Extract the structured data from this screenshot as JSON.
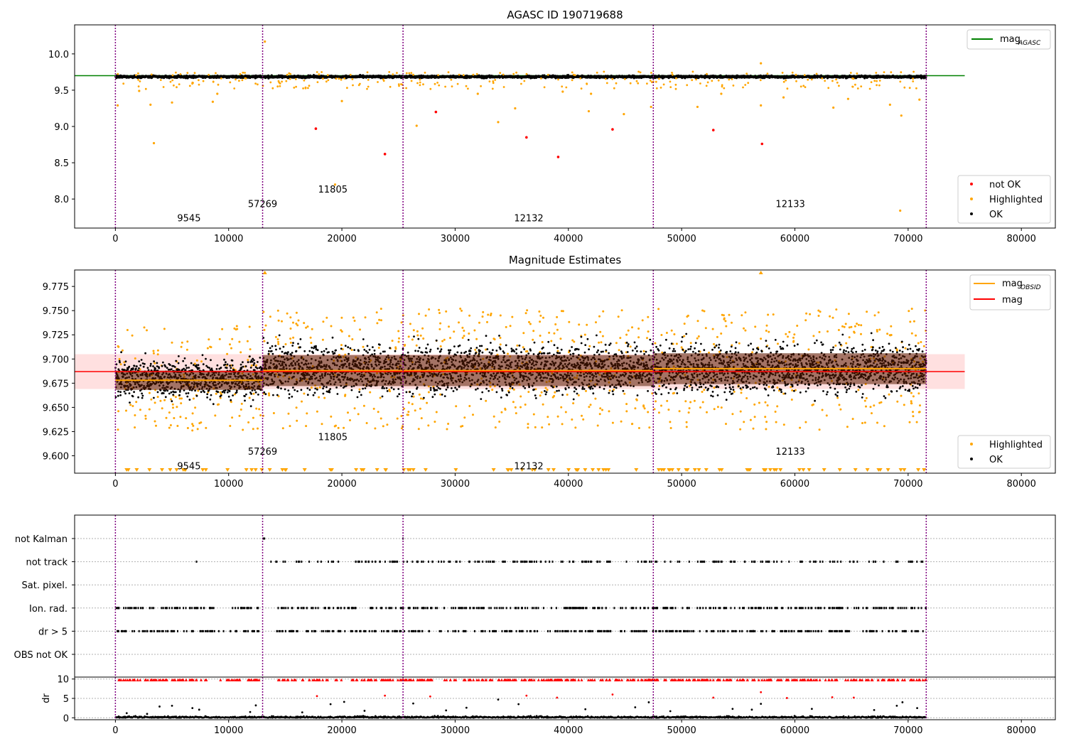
{
  "chart_data": [
    {
      "type": "scatter",
      "title": "AGASC ID 190719688",
      "xlim": [
        -3600,
        83000
      ],
      "ylim": [
        7.6,
        10.4
      ],
      "xticks": [
        0,
        10000,
        20000,
        30000,
        40000,
        50000,
        60000,
        70000,
        80000
      ],
      "xtick_labels": [
        "0",
        "10000",
        "20000",
        "30000",
        "40000",
        "50000",
        "60000",
        "70000",
        "80000"
      ],
      "yticks": [
        8.0,
        8.5,
        9.0,
        9.5,
        10.0
      ],
      "ytick_labels": [
        "8.0",
        "8.5",
        "9.0",
        "9.5",
        "10.0"
      ],
      "vlines_x": [
        0,
        13000,
        25400,
        47500,
        71600
      ],
      "obsid_labels": [
        {
          "text": "9545",
          "x": 6500,
          "y": 7.73
        },
        {
          "text": "57269",
          "x": 13000,
          "y": 7.93
        },
        {
          "text": "11805",
          "x": 19200,
          "y": 8.13
        },
        {
          "text": "12132",
          "x": 36500,
          "y": 7.73
        },
        {
          "text": "12133",
          "x": 59600,
          "y": 7.93
        }
      ],
      "agasc_line": {
        "y": 9.7,
        "x": [
          -3600,
          75000
        ]
      },
      "ok_band": {
        "y_center": 9.685,
        "y_halfwidth": 0.035,
        "x_range": [
          0,
          71600
        ]
      },
      "not_ok_points": [
        [
          17700,
          8.97
        ],
        [
          23800,
          8.62
        ],
        [
          28300,
          9.2
        ],
        [
          36300,
          8.85
        ],
        [
          39100,
          8.58
        ],
        [
          43900,
          8.96
        ],
        [
          52800,
          8.95
        ],
        [
          57100,
          8.76
        ]
      ],
      "highlighted_outliers": [
        [
          3400,
          8.77
        ],
        [
          3100,
          9.3
        ],
        [
          5000,
          9.33
        ],
        [
          8600,
          9.34
        ],
        [
          200,
          9.29
        ],
        [
          13200,
          10.17
        ],
        [
          19400,
          8.2
        ],
        [
          26600,
          9.01
        ],
        [
          33800,
          9.06
        ],
        [
          35300,
          9.25
        ],
        [
          41800,
          9.21
        ],
        [
          44900,
          9.17
        ],
        [
          47300,
          9.27
        ],
        [
          51400,
          9.27
        ],
        [
          57000,
          9.87
        ],
        [
          57000,
          9.29
        ],
        [
          63400,
          9.26
        ],
        [
          68400,
          9.3
        ],
        [
          69400,
          9.15
        ],
        [
          69300,
          7.84
        ],
        [
          71000,
          9.37
        ],
        [
          2100,
          9.49
        ],
        [
          9000,
          9.45
        ],
        [
          20000,
          9.35
        ],
        [
          32000,
          9.45
        ],
        [
          39500,
          9.48
        ],
        [
          42000,
          9.45
        ],
        [
          53500,
          9.45
        ],
        [
          59000,
          9.4
        ],
        [
          64700,
          9.38
        ]
      ],
      "legend": [
        {
          "label": "mag",
          "sub": "AGASC",
          "color": "#008000",
          "kind": "line"
        },
        {
          "label": "not OK",
          "color": "#ff0000",
          "kind": "dot"
        },
        {
          "label": "Highlighted",
          "color": "#ffa500",
          "kind": "dot"
        },
        {
          "label": "OK",
          "color": "#000000",
          "kind": "dot"
        }
      ]
    },
    {
      "type": "scatter",
      "title": "Magnitude Estimates",
      "xlim": [
        -3600,
        83000
      ],
      "ylim": [
        9.582,
        9.792
      ],
      "xticks": [
        0,
        10000,
        20000,
        30000,
        40000,
        50000,
        60000,
        70000,
        80000
      ],
      "xtick_labels": [
        "0",
        "10000",
        "20000",
        "30000",
        "40000",
        "50000",
        "60000",
        "70000",
        "80000"
      ],
      "yticks": [
        9.6,
        9.625,
        9.65,
        9.675,
        9.7,
        9.725,
        9.75,
        9.775
      ],
      "ytick_labels": [
        "9.600",
        "9.625",
        "9.650",
        "9.675",
        "9.700",
        "9.725",
        "9.750",
        "9.775"
      ],
      "vlines_x": [
        0,
        13000,
        25400,
        47500,
        71600
      ],
      "obsid_labels": [
        {
          "text": "9545",
          "x": 6500,
          "y": 9.589
        },
        {
          "text": "57269",
          "x": 13000,
          "y": 9.604
        },
        {
          "text": "11805",
          "x": 19200,
          "y": 9.619
        },
        {
          "text": "12132",
          "x": 36500,
          "y": 9.589
        },
        {
          "text": "12133",
          "x": 59600,
          "y": 9.604
        }
      ],
      "mag_line": {
        "y": 9.687,
        "x": [
          -3600,
          75000
        ],
        "band": [
          9.669,
          9.705
        ]
      },
      "obsid_segments": [
        {
          "x0": 0,
          "x1": 13000,
          "y": 9.678,
          "ylo": 9.668,
          "yhi": 9.688
        },
        {
          "x0": 13000,
          "x1": 25400,
          "y": 9.688,
          "ylo": 9.672,
          "yhi": 9.704
        },
        {
          "x0": 25400,
          "x1": 47500,
          "y": 9.688,
          "ylo": 9.672,
          "yhi": 9.704
        },
        {
          "x0": 47500,
          "x1": 71600,
          "y": 9.69,
          "ylo": 9.674,
          "yhi": 9.706
        }
      ],
      "segment_spread": [
        {
          "x0": 0,
          "x1": 13000,
          "black": [
            9.642,
            9.718
          ],
          "orange": [
            9.625,
            9.735
          ]
        },
        {
          "x0": 13000,
          "x1": 71600,
          "black": [
            9.642,
            9.738
          ],
          "orange": [
            9.627,
            9.752
          ]
        }
      ],
      "top_markers": [
        [
          13200,
          9.79
        ],
        [
          57000,
          9.79
        ]
      ],
      "legend": [
        {
          "label": "mag",
          "sub": "OBSID",
          "color": "#ffa500",
          "kind": "line"
        },
        {
          "label": "mag",
          "color": "#ff0000",
          "kind": "line"
        },
        {
          "label": "Highlighted",
          "color": "#ffa500",
          "kind": "dot"
        },
        {
          "label": "OK",
          "color": "#000000",
          "kind": "dot"
        }
      ]
    },
    {
      "type": "scatter",
      "title": "",
      "xlim": [
        -3600,
        83000
      ],
      "categories": [
        "OBS not OK",
        "dr > 5",
        "Ion. rad.",
        "Sat. pixel.",
        "not track",
        "not Kalman"
      ],
      "ytick_labels": [
        "OBS not OK",
        "dr > 5",
        "Ion. rad.",
        "Sat. pixel.",
        "not track",
        "not Kalman"
      ],
      "vlines_x": [
        0,
        13000,
        25400,
        47500,
        71600
      ],
      "flags": {
        "dr > 5": {
          "ranges": [
            [
              0,
              12800
            ],
            [
              14200,
              71600
            ]
          ],
          "count": 420
        },
        "Ion. rad.": {
          "ranges": [
            [
              0,
              12800
            ],
            [
              14200,
              71600
            ]
          ],
          "count": 420
        },
        "not track": {
          "ranges": [
            [
              7000,
              7300
            ],
            [
              13700,
              71600
            ]
          ],
          "count": 210
        },
        "not Kalman": {
          "ranges": [
            [
              13000,
              13400
            ],
            [
              25300,
              25500
            ]
          ],
          "count": 3
        }
      }
    },
    {
      "type": "scatter",
      "ylabel": "dr",
      "xlim": [
        -3600,
        83000
      ],
      "ylim": [
        -0.5,
        10.5
      ],
      "yticks": [
        0,
        5,
        10
      ],
      "ytick_labels": [
        "0",
        "5",
        "10"
      ],
      "xticks": [
        0,
        10000,
        20000,
        30000,
        40000,
        50000,
        60000,
        70000,
        80000
      ],
      "xtick_labels": [
        "0",
        "10000",
        "20000",
        "30000",
        "40000",
        "50000",
        "60000",
        "70000",
        "80000"
      ],
      "vlines_x": [
        0,
        13000,
        25400,
        47500,
        71600
      ],
      "high_dr": {
        "y": 9.8,
        "ranges": [
          [
            0,
            12800
          ],
          [
            14200,
            71600
          ]
        ],
        "count": 480
      },
      "mid_dr_points": [
        [
          1000,
          1.2
        ],
        [
          2800,
          1.0
        ],
        [
          3900,
          2.9
        ],
        [
          5000,
          3.1
        ],
        [
          6800,
          2.5
        ],
        [
          7400,
          2.1
        ],
        [
          11900,
          1.5
        ],
        [
          12400,
          3.2
        ],
        [
          16500,
          1.4
        ],
        [
          17800,
          5.6
        ],
        [
          19000,
          3.5
        ],
        [
          20200,
          4.1
        ],
        [
          22000,
          1.8
        ],
        [
          23800,
          5.7
        ],
        [
          26300,
          3.7
        ],
        [
          27800,
          5.5
        ],
        [
          29200,
          1.9
        ],
        [
          31000,
          2.6
        ],
        [
          33800,
          4.7
        ],
        [
          35600,
          3.5
        ],
        [
          36300,
          5.7
        ],
        [
          39000,
          5.2
        ],
        [
          41500,
          2.2
        ],
        [
          43900,
          6.0
        ],
        [
          45900,
          2.7
        ],
        [
          47100,
          4.0
        ],
        [
          49000,
          1.7
        ],
        [
          52800,
          5.2
        ],
        [
          54500,
          2.3
        ],
        [
          56200,
          2.1
        ],
        [
          57000,
          6.6
        ],
        [
          57000,
          3.6
        ],
        [
          59300,
          5.1
        ],
        [
          61500,
          2.3
        ],
        [
          63300,
          5.3
        ],
        [
          65200,
          5.2
        ],
        [
          67000,
          2.0
        ],
        [
          69000,
          3.1
        ],
        [
          69500,
          4.0
        ],
        [
          70800,
          2.5
        ]
      ]
    }
  ]
}
